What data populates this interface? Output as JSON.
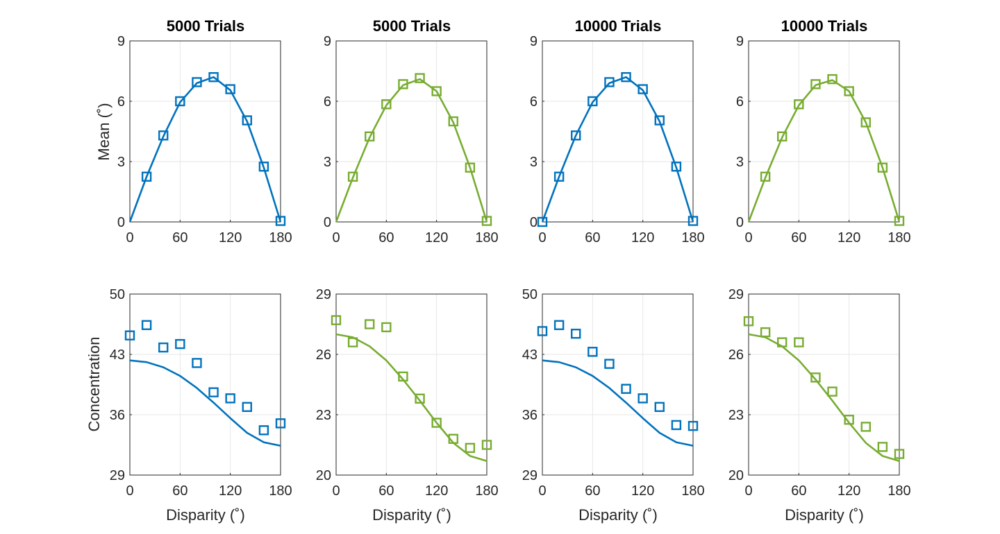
{
  "figure": {
    "column_titles": [
      "5000 Trials",
      "5000 Trials",
      "10000 Trials",
      "10000 Trials"
    ],
    "ylabel_top": "Mean (˚)",
    "ylabel_bottom": "Concentration",
    "xlabel": "Disparity (˚)"
  },
  "colors": {
    "blue": "#0072BD",
    "green": "#77AC30",
    "grid": "#e6e6e6",
    "axis": "#262626"
  },
  "chart_data": [
    {
      "type": "line",
      "title": "5000 Trials",
      "xlabel": "",
      "ylabel": "Mean (˚)",
      "xlim": [
        0,
        180
      ],
      "ylim": [
        0,
        9
      ],
      "xticks": [
        0,
        60,
        120,
        180
      ],
      "yticks": [
        0,
        3,
        6,
        9
      ],
      "grid": true,
      "color": "blue",
      "line": {
        "x": [
          0,
          20,
          40,
          60,
          80,
          100,
          120,
          140,
          160,
          180
        ],
        "y": [
          0,
          2.25,
          4.25,
          5.95,
          6.9,
          7.2,
          6.55,
          5.0,
          2.7,
          0
        ]
      },
      "markers": {
        "x": [
          20,
          40,
          60,
          80,
          100,
          120,
          140,
          160,
          180
        ],
        "y": [
          2.25,
          4.3,
          6.0,
          6.95,
          7.2,
          6.6,
          5.05,
          2.75,
          0.05
        ]
      }
    },
    {
      "type": "line",
      "title": "5000 Trials",
      "xlabel": "",
      "ylabel": "",
      "xlim": [
        0,
        180
      ],
      "ylim": [
        0,
        9
      ],
      "xticks": [
        0,
        60,
        120,
        180
      ],
      "yticks": [
        0,
        3,
        6,
        9
      ],
      "grid": true,
      "color": "green",
      "line": {
        "x": [
          0,
          20,
          40,
          60,
          80,
          100,
          120,
          140,
          160,
          180
        ],
        "y": [
          0,
          2.2,
          4.2,
          5.8,
          6.8,
          7.1,
          6.5,
          4.95,
          2.7,
          0
        ]
      },
      "markers": {
        "x": [
          20,
          40,
          60,
          80,
          100,
          120,
          140,
          160,
          180
        ],
        "y": [
          2.25,
          4.25,
          5.85,
          6.85,
          7.15,
          6.5,
          5.0,
          2.7,
          0.05
        ]
      }
    },
    {
      "type": "line",
      "title": "10000 Trials",
      "xlabel": "",
      "ylabel": "",
      "xlim": [
        0,
        180
      ],
      "ylim": [
        0,
        9
      ],
      "xticks": [
        0,
        60,
        120,
        180
      ],
      "yticks": [
        0,
        3,
        6,
        9
      ],
      "grid": true,
      "color": "blue",
      "line": {
        "x": [
          0,
          20,
          40,
          60,
          80,
          100,
          120,
          140,
          160,
          180
        ],
        "y": [
          0,
          2.25,
          4.3,
          5.95,
          6.9,
          7.2,
          6.55,
          5.0,
          2.7,
          0
        ]
      },
      "markers": {
        "x": [
          0,
          20,
          40,
          60,
          80,
          100,
          120,
          140,
          160,
          180
        ],
        "y": [
          0,
          2.25,
          4.3,
          6.0,
          6.95,
          7.2,
          6.6,
          5.05,
          2.75,
          0.05
        ]
      }
    },
    {
      "type": "line",
      "title": "10000 Trials",
      "xlabel": "",
      "ylabel": "",
      "xlim": [
        0,
        180
      ],
      "ylim": [
        0,
        9
      ],
      "xticks": [
        0,
        60,
        120,
        180
      ],
      "yticks": [
        0,
        3,
        6,
        9
      ],
      "grid": true,
      "color": "green",
      "line": {
        "x": [
          0,
          20,
          40,
          60,
          80,
          100,
          120,
          140,
          160,
          180
        ],
        "y": [
          0,
          2.2,
          4.2,
          5.8,
          6.8,
          7.05,
          6.5,
          4.95,
          2.7,
          0
        ]
      },
      "markers": {
        "x": [
          20,
          40,
          60,
          80,
          100,
          120,
          140,
          160,
          180
        ],
        "y": [
          2.25,
          4.25,
          5.85,
          6.85,
          7.1,
          6.5,
          4.95,
          2.7,
          0.05
        ]
      }
    },
    {
      "type": "line",
      "title": "",
      "xlabel": "Disparity (˚)",
      "ylabel": "Concentration",
      "xlim": [
        0,
        180
      ],
      "ylim": [
        29,
        50
      ],
      "xticks": [
        0,
        60,
        120,
        180
      ],
      "yticks": [
        29,
        36,
        43,
        50
      ],
      "grid": true,
      "color": "blue",
      "line": {
        "x": [
          0,
          20,
          40,
          60,
          80,
          100,
          120,
          140,
          160,
          180
        ],
        "y": [
          42.3,
          42.1,
          41.5,
          40.5,
          39.1,
          37.4,
          35.6,
          33.9,
          32.8,
          32.4
        ]
      },
      "markers": {
        "x": [
          0,
          20,
          40,
          60,
          80,
          100,
          120,
          140,
          160,
          180
        ],
        "y": [
          45.2,
          46.4,
          43.8,
          44.2,
          42.0,
          38.6,
          37.9,
          36.9,
          34.2,
          35.0
        ]
      }
    },
    {
      "type": "line",
      "title": "",
      "xlabel": "Disparity (˚)",
      "ylabel": "",
      "xlim": [
        0,
        180
      ],
      "ylim": [
        20,
        29
      ],
      "xticks": [
        0,
        60,
        120,
        180
      ],
      "yticks": [
        20,
        23,
        26,
        29
      ],
      "grid": true,
      "color": "green",
      "line": {
        "x": [
          0,
          20,
          40,
          60,
          80,
          100,
          120,
          140,
          160,
          180
        ],
        "y": [
          27.0,
          26.85,
          26.4,
          25.7,
          24.75,
          23.7,
          22.6,
          21.6,
          20.95,
          20.7
        ]
      },
      "markers": {
        "x": [
          0,
          20,
          40,
          60,
          80,
          100,
          120,
          140,
          160,
          180
        ],
        "y": [
          27.7,
          26.6,
          27.5,
          27.35,
          24.9,
          23.8,
          22.6,
          21.8,
          21.35,
          21.5
        ]
      }
    },
    {
      "type": "line",
      "title": "",
      "xlabel": "Disparity (˚)",
      "ylabel": "",
      "xlim": [
        0,
        180
      ],
      "ylim": [
        29,
        50
      ],
      "xticks": [
        0,
        60,
        120,
        180
      ],
      "yticks": [
        29,
        36,
        43,
        50
      ],
      "grid": true,
      "color": "blue",
      "line": {
        "x": [
          0,
          20,
          40,
          60,
          80,
          100,
          120,
          140,
          160,
          180
        ],
        "y": [
          42.3,
          42.1,
          41.5,
          40.5,
          39.1,
          37.4,
          35.6,
          33.9,
          32.8,
          32.4
        ]
      },
      "markers": {
        "x": [
          0,
          20,
          40,
          60,
          80,
          100,
          120,
          140,
          160,
          180
        ],
        "y": [
          45.7,
          46.4,
          45.4,
          43.3,
          41.9,
          39.0,
          37.9,
          36.9,
          34.8,
          34.7
        ]
      }
    },
    {
      "type": "line",
      "title": "",
      "xlabel": "Disparity (˚)",
      "ylabel": "",
      "xlim": [
        0,
        180
      ],
      "ylim": [
        20,
        29
      ],
      "xticks": [
        0,
        60,
        120,
        180
      ],
      "yticks": [
        20,
        23,
        26,
        29
      ],
      "grid": true,
      "color": "green",
      "line": {
        "x": [
          0,
          20,
          40,
          60,
          80,
          100,
          120,
          140,
          160,
          180
        ],
        "y": [
          27.0,
          26.85,
          26.4,
          25.7,
          24.75,
          23.7,
          22.6,
          21.6,
          20.95,
          20.7
        ]
      },
      "markers": {
        "x": [
          0,
          20,
          40,
          60,
          80,
          100,
          120,
          140,
          160,
          180
        ],
        "y": [
          27.65,
          27.1,
          26.6,
          26.6,
          24.85,
          24.15,
          22.75,
          22.4,
          21.4,
          21.05
        ]
      }
    }
  ]
}
